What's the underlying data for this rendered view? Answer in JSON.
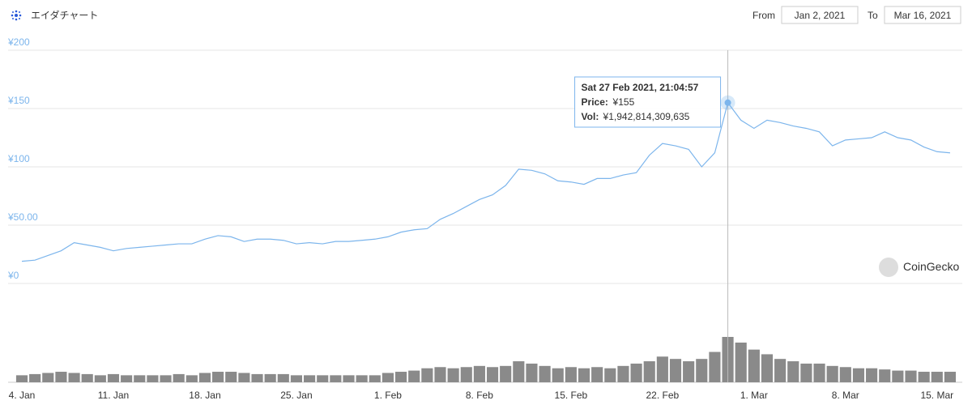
{
  "chart_data": {
    "type": "line",
    "title": "エイダチャート",
    "date_range": {
      "from_label": "From",
      "from": "Jan 2, 2021",
      "to_label": "To",
      "to": "Mar 16, 2021"
    },
    "watermark": "CoinGecko",
    "categories": [
      "4. Jan",
      null,
      null,
      null,
      null,
      null,
      null,
      "11. Jan",
      null,
      null,
      null,
      null,
      null,
      null,
      "18. Jan",
      null,
      null,
      null,
      null,
      null,
      null,
      "25. Jan",
      null,
      null,
      null,
      null,
      null,
      null,
      "1. Feb",
      null,
      null,
      null,
      null,
      null,
      null,
      "8. Feb",
      null,
      null,
      null,
      null,
      null,
      null,
      "15. Feb",
      null,
      null,
      null,
      null,
      null,
      null,
      "22. Feb",
      null,
      null,
      null,
      null,
      null,
      null,
      "1. Mar",
      null,
      null,
      null,
      null,
      null,
      null,
      "8. Mar",
      null,
      null,
      null,
      null,
      null,
      null,
      "15. Mar",
      null
    ],
    "series": [
      {
        "color": "#7cb5ec",
        "values": [
          19,
          20,
          24,
          28,
          35,
          33,
          31,
          28,
          30,
          31,
          32,
          33,
          34,
          34,
          38,
          41,
          40,
          36,
          38,
          38,
          37,
          34,
          35,
          34,
          36,
          36,
          37,
          38,
          40,
          44,
          46,
          47,
          55,
          60,
          66,
          72,
          76,
          84,
          98,
          97,
          94,
          88,
          87,
          85,
          90,
          90,
          93,
          95,
          110,
          120,
          118,
          115,
          100,
          112,
          155,
          140,
          133,
          140,
          138,
          135,
          133,
          130,
          118,
          123,
          124,
          125,
          130,
          125,
          123,
          117,
          113,
          112
        ]
      }
    ],
    "volume": {
      "color": "#8a8a8a",
      "values": [
        300000000000,
        350000000000,
        400000000000,
        450000000000,
        400000000000,
        350000000000,
        300000000000,
        350000000000,
        300000000000,
        300000000000,
        300000000000,
        300000000000,
        350000000000,
        300000000000,
        400000000000,
        450000000000,
        450000000000,
        400000000000,
        350000000000,
        350000000000,
        350000000000,
        300000000000,
        300000000000,
        300000000000,
        300000000000,
        300000000000,
        300000000000,
        300000000000,
        400000000000,
        450000000000,
        500000000000,
        600000000000,
        650000000000,
        600000000000,
        650000000000,
        700000000000,
        650000000000,
        700000000000,
        900000000000,
        800000000000,
        700000000000,
        600000000000,
        650000000000,
        600000000000,
        650000000000,
        600000000000,
        700000000000,
        800000000000,
        900000000000,
        1100000000000,
        1000000000000,
        900000000000,
        1000000000000,
        1300000000000,
        1942814309635,
        1700000000000,
        1400000000000,
        1200000000000,
        1000000000000,
        900000000000,
        800000000000,
        800000000000,
        700000000000,
        650000000000,
        600000000000,
        600000000000,
        550000000000,
        500000000000,
        500000000000,
        450000000000,
        450000000000,
        450000000000
      ]
    },
    "ylim": [
      0,
      200
    ],
    "yticks": [
      {
        "value": 0,
        "label": "¥0"
      },
      {
        "value": 50,
        "label": "¥50.00"
      },
      {
        "value": 100,
        "label": "¥100"
      },
      {
        "value": 150,
        "label": "¥150"
      },
      {
        "value": 200,
        "label": "¥200"
      }
    ],
    "grid": true,
    "tooltip": {
      "title": "Sat 27 Feb 2021, 21:04:57",
      "price_label": "Price:",
      "price": {
        "value": 155,
        "label": "¥155"
      },
      "vol_label": "Vol:",
      "vol": {
        "value": 1942814309635,
        "label": "¥1,942,814,309,635"
      }
    }
  }
}
